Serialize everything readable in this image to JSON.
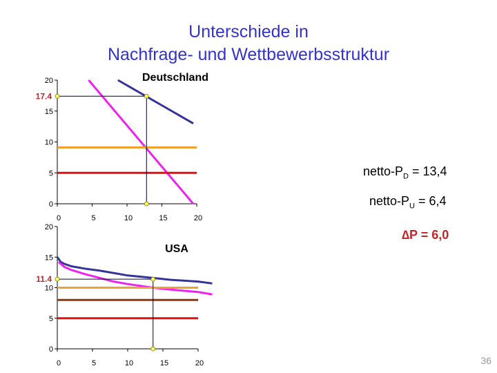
{
  "title_line1": "Unterschiede in",
  "title_line2": "Nachfrage- und Wettbewerbsstruktur",
  "notes": {
    "pd_prefix": "netto-P",
    "pd_sub": "D",
    "pd_value": " = 13,4",
    "pu_prefix": "netto-P",
    "pu_sub": "U",
    "pu_value": " = 6,4",
    "dp": "∆P = 6,0"
  },
  "page_number": "36",
  "chart_data": [
    {
      "type": "line",
      "title": "Deutschland",
      "xlim": [
        0,
        20
      ],
      "ylim": [
        0,
        20
      ],
      "xticks": [
        "0",
        "5",
        "10",
        "15",
        "20"
      ],
      "yticks": [
        "0",
        "5",
        "10",
        "15",
        "20"
      ],
      "marked_y_label": "17.4",
      "marked_point": {
        "x": 12.8,
        "y": 17.4
      },
      "colors": {
        "demand_upper": "#333399",
        "demand_lower": "#ee22ee",
        "orange": "#f0a030",
        "red": "#dd1111"
      },
      "series": [
        {
          "id": "demand_upper",
          "x": [
            8.7,
            19.5
          ],
          "y": [
            20,
            13
          ]
        },
        {
          "id": "demand_lower",
          "x": [
            4.5,
            19.5
          ],
          "y": [
            20,
            0
          ]
        },
        {
          "id": "orange",
          "x": [
            0,
            20
          ],
          "y": [
            9.1,
            9.1
          ]
        },
        {
          "id": "red",
          "x": [
            0,
            20
          ],
          "y": [
            5,
            5
          ]
        }
      ]
    },
    {
      "type": "line",
      "title": "USA",
      "xlim": [
        0,
        20
      ],
      "ylim": [
        0,
        20
      ],
      "xticks": [
        "0",
        "5",
        "10",
        "15",
        "20"
      ],
      "yticks": [
        "0",
        "5",
        "10",
        "15",
        "20"
      ],
      "marked_y_label": "11.4",
      "marked_point": {
        "x": 13.6,
        "y": 11.4
      },
      "colors": {
        "demand_upper": "#333399",
        "demand_lower": "#ee22ee",
        "orange": "#f0a030",
        "brown": "#8b3a0f",
        "red": "#dd1111"
      },
      "series": [
        {
          "id": "demand_upper",
          "x": [
            0,
            0.5,
            1,
            2,
            4,
            6,
            8,
            10,
            13.6,
            16,
            20,
            22
          ],
          "y": [
            15,
            14.2,
            13.9,
            13.5,
            13.1,
            12.8,
            12.4,
            12.0,
            11.6,
            11.3,
            11.0,
            10.7
          ]
        },
        {
          "id": "demand_lower",
          "x": [
            0.2,
            1,
            2,
            4,
            6,
            8,
            10,
            13.6,
            16,
            20,
            22
          ],
          "y": [
            14.2,
            13.4,
            12.9,
            12.2,
            11.6,
            11.0,
            10.6,
            10.0,
            9.7,
            9.3,
            8.9
          ]
        },
        {
          "id": "orange",
          "x": [
            0,
            20
          ],
          "y": [
            10,
            10
          ]
        },
        {
          "id": "brown",
          "x": [
            0,
            20
          ],
          "y": [
            8,
            8
          ]
        },
        {
          "id": "red",
          "x": [
            0,
            20
          ],
          "y": [
            5,
            5
          ]
        }
      ]
    }
  ]
}
